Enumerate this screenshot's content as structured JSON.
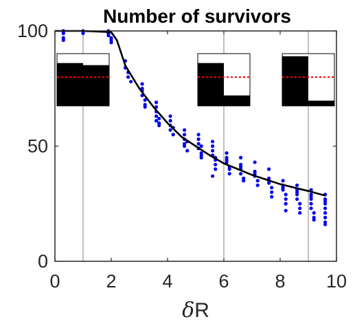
{
  "chart_data": {
    "type": "scatter",
    "title": "Number of survivors",
    "xlabel_symbol": "δ",
    "xlabel_text": "R",
    "ylabel": "",
    "xlim": [
      0,
      10
    ],
    "ylim": [
      0,
      100
    ],
    "x_ticks": [
      "0",
      "2",
      "4",
      "6",
      "8",
      "10"
    ],
    "y_ticks": [
      "0",
      "50",
      "100"
    ],
    "grid": false,
    "vertical_markers_x": [
      1,
      6,
      9
    ],
    "colors": {
      "points": "#0000ee",
      "mean_line": "#000000",
      "marker_lines": "#808080",
      "inset_fill": "#000000",
      "inset_threshold": "#ff0000"
    },
    "series": [
      {
        "kind": "scatter",
        "points": [
          [
            0.3,
            100
          ],
          [
            0.3,
            99
          ],
          [
            0.3,
            97
          ],
          [
            0.3,
            96
          ],
          [
            1.0,
            100
          ],
          [
            1.0,
            99
          ],
          [
            1.9,
            100
          ],
          [
            1.9,
            99
          ],
          [
            1.9,
            98
          ],
          [
            2.0,
            97
          ],
          [
            2.0,
            96
          ],
          [
            2.0,
            95
          ],
          [
            2.5,
            87
          ],
          [
            2.5,
            84
          ],
          [
            2.6,
            82
          ],
          [
            2.6,
            80
          ],
          [
            2.7,
            78
          ],
          [
            3.1,
            77
          ],
          [
            3.1,
            75
          ],
          [
            3.1,
            72
          ],
          [
            3.2,
            70
          ],
          [
            3.2,
            68
          ],
          [
            3.2,
            67
          ],
          [
            3.1,
            74
          ],
          [
            3.6,
            69
          ],
          [
            3.6,
            67
          ],
          [
            3.6,
            65
          ],
          [
            3.6,
            63
          ],
          [
            3.6,
            61
          ],
          [
            3.7,
            60
          ],
          [
            3.7,
            59
          ],
          [
            3.7,
            62
          ],
          [
            4.1,
            63
          ],
          [
            4.1,
            61
          ],
          [
            4.1,
            59
          ],
          [
            4.1,
            57
          ],
          [
            4.2,
            55
          ],
          [
            4.2,
            58
          ],
          [
            4.6,
            57
          ],
          [
            4.6,
            55
          ],
          [
            4.6,
            53
          ],
          [
            4.6,
            51
          ],
          [
            4.6,
            50
          ],
          [
            4.7,
            48
          ],
          [
            4.7,
            52
          ],
          [
            5.1,
            55
          ],
          [
            5.1,
            53
          ],
          [
            5.1,
            51
          ],
          [
            5.1,
            49
          ],
          [
            5.2,
            47
          ],
          [
            5.2,
            46
          ],
          [
            5.2,
            45
          ],
          [
            5.2,
            50
          ],
          [
            5.6,
            52
          ],
          [
            5.6,
            50
          ],
          [
            5.6,
            48
          ],
          [
            5.6,
            46
          ],
          [
            5.7,
            44
          ],
          [
            5.7,
            42
          ],
          [
            5.7,
            40
          ],
          [
            5.6,
            37
          ],
          [
            5.7,
            45
          ],
          [
            6.1,
            47
          ],
          [
            6.1,
            45
          ],
          [
            6.1,
            43
          ],
          [
            6.2,
            41
          ],
          [
            6.2,
            40
          ],
          [
            6.2,
            38
          ],
          [
            6.1,
            44
          ],
          [
            6.6,
            45
          ],
          [
            6.6,
            42
          ],
          [
            6.6,
            40
          ],
          [
            6.6,
            38
          ],
          [
            6.7,
            36
          ],
          [
            6.7,
            35
          ],
          [
            6.6,
            41
          ],
          [
            7.1,
            43
          ],
          [
            7.1,
            39
          ],
          [
            7.1,
            37
          ],
          [
            7.2,
            35
          ],
          [
            7.2,
            33
          ],
          [
            7.1,
            38
          ],
          [
            7.6,
            40
          ],
          [
            7.6,
            36
          ],
          [
            7.6,
            34
          ],
          [
            7.7,
            32
          ],
          [
            7.7,
            30
          ],
          [
            7.7,
            28
          ],
          [
            7.6,
            35
          ],
          [
            8.1,
            35
          ],
          [
            8.1,
            33
          ],
          [
            8.1,
            31
          ],
          [
            8.2,
            29
          ],
          [
            8.2,
            27
          ],
          [
            8.2,
            25
          ],
          [
            8.2,
            22
          ],
          [
            8.1,
            32
          ],
          [
            8.6,
            33
          ],
          [
            8.6,
            31
          ],
          [
            8.6,
            29
          ],
          [
            8.6,
            27
          ],
          [
            8.7,
            25
          ],
          [
            8.7,
            23
          ],
          [
            8.7,
            21
          ],
          [
            8.6,
            30
          ],
          [
            9.1,
            31
          ],
          [
            9.1,
            29
          ],
          [
            9.1,
            27
          ],
          [
            9.1,
            25
          ],
          [
            9.1,
            23
          ],
          [
            9.2,
            21
          ],
          [
            9.2,
            19
          ],
          [
            9.2,
            18
          ],
          [
            9.1,
            28
          ],
          [
            9.6,
            29
          ],
          [
            9.6,
            27
          ],
          [
            9.6,
            25
          ],
          [
            9.6,
            23
          ],
          [
            9.6,
            21
          ],
          [
            9.6,
            19
          ],
          [
            9.6,
            17
          ],
          [
            9.6,
            16
          ],
          [
            9.6,
            26
          ]
        ]
      },
      {
        "kind": "line",
        "x": [
          0,
          1,
          2,
          2.2,
          2.5,
          3,
          3.5,
          4,
          4.5,
          5,
          5.5,
          6,
          6.5,
          7,
          7.5,
          8,
          8.5,
          9,
          9.6
        ],
        "values": [
          100,
          100,
          99.5,
          96,
          85,
          75,
          67,
          60,
          54,
          50,
          46,
          42.5,
          40,
          37.5,
          35.5,
          33.5,
          32,
          30.5,
          28.5
        ]
      }
    ],
    "insets": [
      {
        "at_x": 1,
        "left_level": 0.82,
        "right_level": 0.78,
        "threshold": 0.55
      },
      {
        "at_x": 6,
        "left_level": 0.82,
        "right_level": 0.2,
        "threshold": 0.55
      },
      {
        "at_x": 9,
        "left_level": 0.95,
        "right_level": 0.1,
        "threshold": 0.55
      }
    ]
  }
}
